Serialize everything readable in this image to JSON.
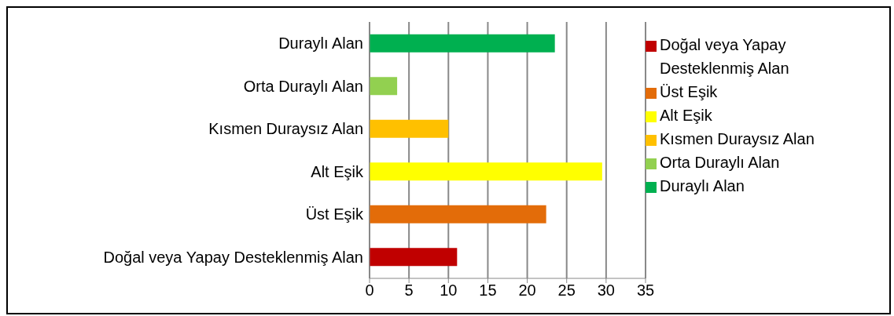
{
  "chart_data": {
    "type": "bar",
    "orientation": "horizontal",
    "stacked": true,
    "categories": [
      "Duraylı Alan",
      "Orta Duraylı Alan",
      "Kısmen Duraysız Alan",
      "Alt Eşik",
      "Üst Eşik",
      "Doğal veya Yapay Desteklenmiş Alan"
    ],
    "series": [
      {
        "name": "Doğal veya Yapay Desteklenmiş Alan",
        "color": "#c00000",
        "values": [
          null,
          null,
          null,
          null,
          null,
          11.1
        ]
      },
      {
        "name": "Üst Eşik",
        "color": "#e36c09",
        "values": [
          null,
          null,
          null,
          null,
          22.4,
          null
        ]
      },
      {
        "name": "Alt Eşik",
        "color": "#ffff00",
        "values": [
          null,
          null,
          null,
          29.5,
          null,
          null
        ]
      },
      {
        "name": "Kısmen Duraysız Alan",
        "color": "#ffc000",
        "values": [
          null,
          null,
          10.0,
          null,
          null,
          null
        ]
      },
      {
        "name": "Orta Duraylı Alan",
        "color": "#92d050",
        "values": [
          null,
          3.5,
          null,
          null,
          null,
          null
        ]
      },
      {
        "name": "Duraylı Alan",
        "color": "#00b050",
        "values": [
          23.5,
          null,
          null,
          null,
          null,
          null
        ]
      }
    ],
    "xlim": [
      0,
      35
    ],
    "xticks": [
      0,
      5,
      10,
      15,
      20,
      25,
      30,
      35
    ],
    "grid": "x",
    "legend": "right"
  }
}
